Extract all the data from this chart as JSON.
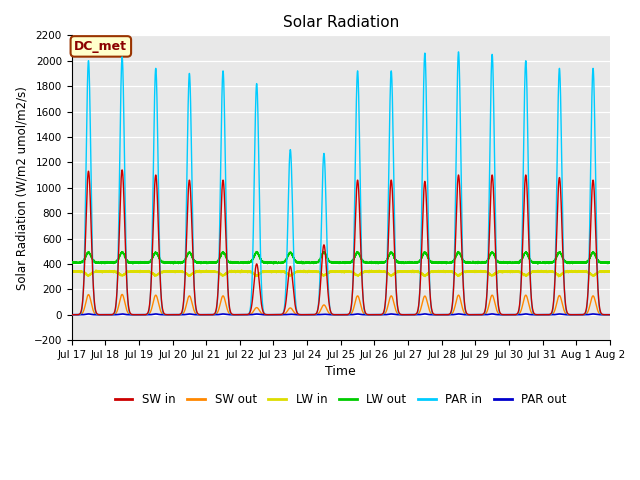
{
  "title": "Solar Radiation",
  "ylabel": "Solar Radiation (W/m2 umol/m2/s)",
  "xlabel": "Time",
  "legend_label": "DC_met",
  "ylim": [
    -200,
    2200
  ],
  "yticks": [
    -200,
    0,
    200,
    400,
    600,
    800,
    1000,
    1200,
    1400,
    1600,
    1800,
    2000,
    2200
  ],
  "n_days": 16,
  "points_per_day": 288,
  "xtick_labels": [
    "Jul 17",
    "Jul 18",
    "Jul 19",
    "Jul 20",
    "Jul 21",
    "Jul 22",
    "Jul 23",
    "Jul 24",
    "Jul 25",
    "Jul 26",
    "Jul 27",
    "Jul 28",
    "Jul 29",
    "Jul 30",
    "Jul 31",
    "Aug 1"
  ],
  "sw_in_color": "#cc0000",
  "sw_out_color": "#ff8800",
  "lw_in_color": "#dddd00",
  "lw_out_color": "#00cc00",
  "par_in_color": "#00ccff",
  "par_out_color": "#0000cc",
  "background_color": "#e8e8e8",
  "grid_color": "#ffffff",
  "fig_bg": "#ffffff",
  "legend_box_facecolor": "#ffffcc",
  "legend_box_edgecolor": "#993300",
  "peak_sw": [
    1130,
    1140,
    1100,
    1060,
    1060,
    400,
    380,
    550,
    1060,
    1060,
    1050,
    1100,
    1100,
    1100,
    1080,
    1060
  ],
  "peak_par": [
    2000,
    2030,
    1940,
    1900,
    1920,
    1820,
    1300,
    1270,
    1920,
    1920,
    2060,
    2070,
    2050,
    2000,
    1940,
    1940
  ],
  "lw_in_base": 340,
  "lw_in_amp": 30,
  "lw_out_base": 410,
  "lw_out_amp": 80
}
